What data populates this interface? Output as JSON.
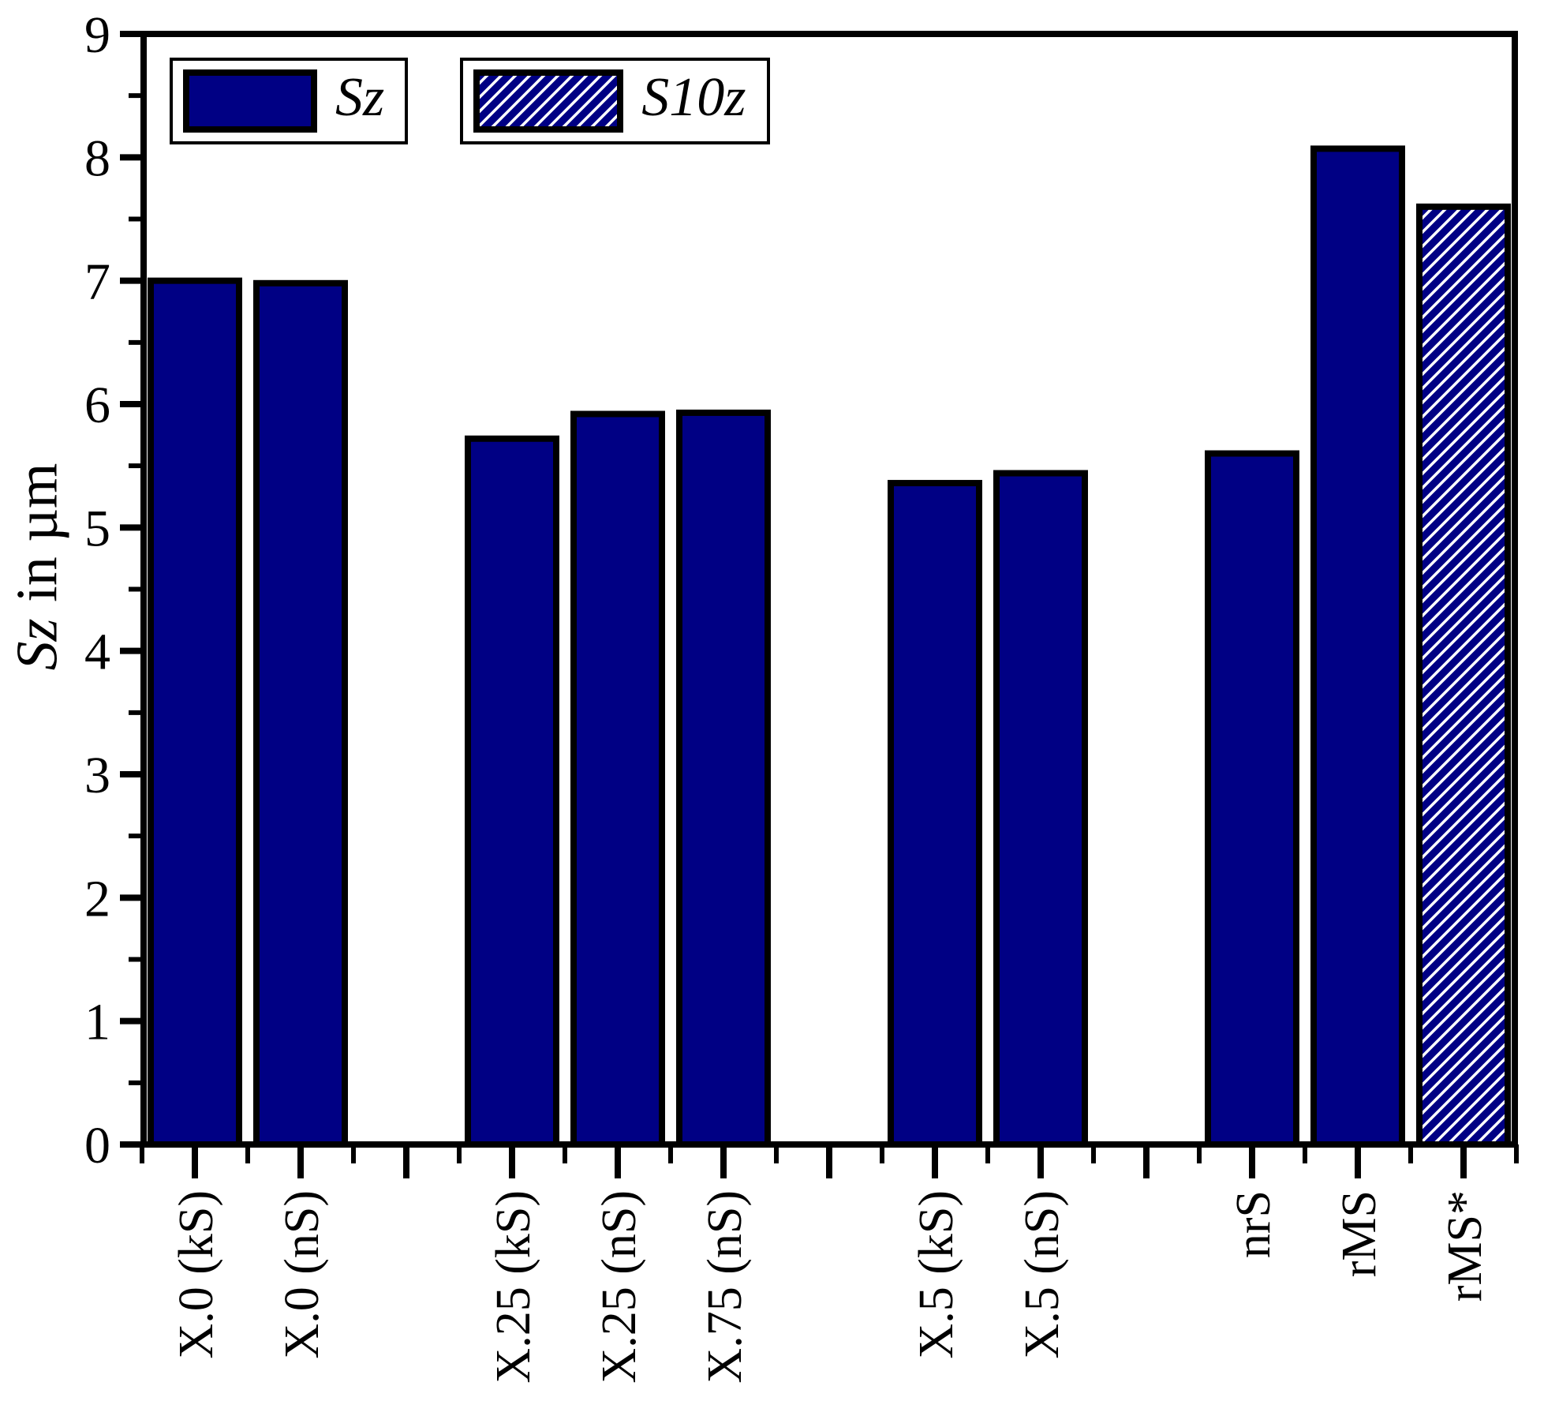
{
  "figure": {
    "background": "#ffffff"
  },
  "chart_data": {
    "type": "bar",
    "title": "",
    "ylabel": {
      "italic": "Sz",
      "regular": "in µm",
      "full": "Sz in µm"
    },
    "xlabel": "",
    "ylim": [
      0,
      9
    ],
    "y_major_step": 1,
    "y_minor_step": 0.5,
    "y_tick_labels": [
      "0",
      "1",
      "2",
      "3",
      "4",
      "5",
      "6",
      "7",
      "8",
      "9"
    ],
    "grid": false,
    "legend_position": "top-left",
    "legend": [
      {
        "label": "Sz",
        "fill": "solid"
      },
      {
        "label": "S10z",
        "fill": "hatched"
      }
    ],
    "bar_color": "#000084",
    "bar_border_color": "#000000",
    "hatch_style": "diagonal-forward-stripes",
    "categories": [
      "X.0 (kS)",
      "X.0 (nS)",
      "X.25 (kS)",
      "X.25 (nS)",
      "X.75 (nS)",
      "X.5 (kS)",
      "X.5 (nS)",
      "nrS",
      "rMS",
      "rMS*"
    ],
    "values": [
      7.0,
      6.98,
      5.72,
      5.92,
      5.93,
      5.36,
      5.44,
      5.6,
      8.07,
      7.6
    ],
    "series_per_bar": [
      "Sz",
      "Sz",
      "Sz",
      "Sz",
      "Sz",
      "Sz",
      "Sz",
      "Sz",
      "Sz",
      "S10z"
    ],
    "slots": [
      0,
      1,
      3,
      4,
      5,
      7,
      8,
      10,
      11,
      12
    ],
    "slot_count": 13,
    "group_structure": "groups of [2, 3, 2, 3] bars separated by one empty slot"
  }
}
